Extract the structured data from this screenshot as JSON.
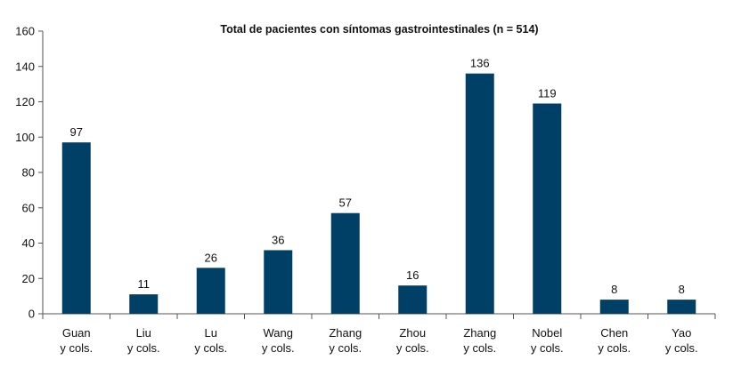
{
  "chart_data": {
    "type": "bar",
    "title": "Total de pacientes con síntomas gastrointestinales (n = 514)",
    "xlabel": "",
    "ylabel": "",
    "ylim": [
      0,
      160
    ],
    "yticks": [
      0,
      20,
      40,
      60,
      80,
      100,
      120,
      140,
      160
    ],
    "grid": false,
    "categories": [
      [
        "Guan",
        "y cols."
      ],
      [
        "Liu",
        "y cols."
      ],
      [
        "Lu",
        "y cols."
      ],
      [
        "Wang",
        "y cols."
      ],
      [
        "Zhang",
        "y cols."
      ],
      [
        "Zhou",
        "y cols."
      ],
      [
        "Zhang",
        "y cols."
      ],
      [
        "Nobel",
        "y cols."
      ],
      [
        "Chen",
        "y cols."
      ],
      [
        "Yao",
        "y cols."
      ]
    ],
    "values": [
      97,
      11,
      26,
      36,
      57,
      16,
      136,
      119,
      8,
      8
    ],
    "bar_color": "#003f66"
  }
}
